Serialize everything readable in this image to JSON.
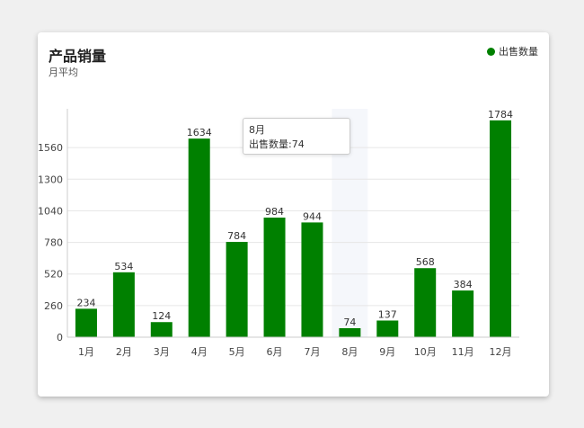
{
  "chart_data": {
    "type": "bar",
    "title": "产品销量",
    "subtitle": "月平均",
    "categories": [
      "1月",
      "2月",
      "3月",
      "4月",
      "5月",
      "6月",
      "7月",
      "8月",
      "9月",
      "10月",
      "11月",
      "12月"
    ],
    "series": [
      {
        "name": "出售数量",
        "values": [
          234,
          534,
          124,
          1634,
          784,
          984,
          944,
          74,
          137,
          568,
          384,
          1784
        ]
      }
    ],
    "ylim": [
      0,
      1820
    ],
    "yticks": [
      0,
      260,
      520,
      780,
      1040,
      1300,
      1560
    ],
    "grid": true,
    "legend_position": "top-right",
    "bar_color": "#008000",
    "data_labels": true
  },
  "tooltip": {
    "category": "8月",
    "text": "出售数量:74"
  }
}
